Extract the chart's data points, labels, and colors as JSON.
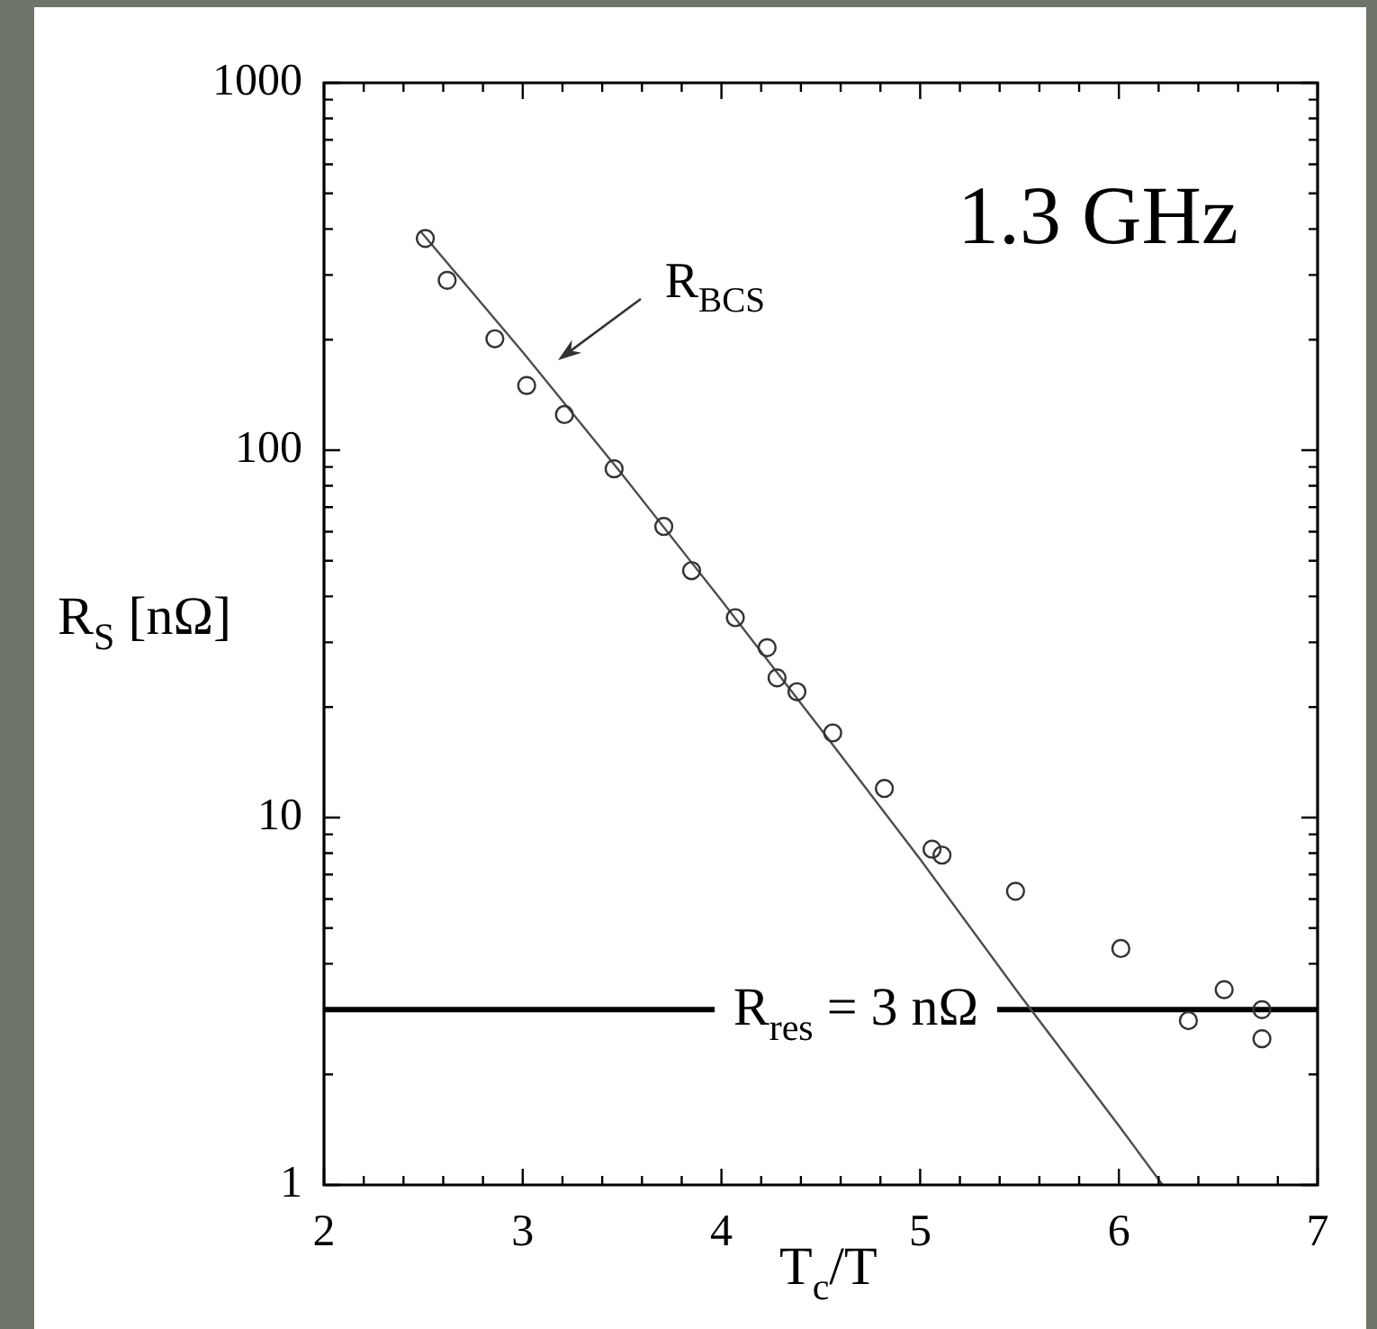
{
  "chart_data": {
    "type": "scatter",
    "xlabel": "T$_{c}$/T",
    "ylabel": "R$_{S}$ [nΩ]",
    "series": [
      {
        "color": "#333333",
        "x": [
          2.51,
          2.62,
          2.86,
          3.02,
          3.21,
          3.46,
          3.71,
          3.85,
          4.07,
          4.23,
          4.28,
          4.38,
          4.56,
          4.82,
          5.06,
          5.11,
          5.48,
          6.01,
          6.35,
          6.53,
          6.72,
          6.72
        ],
        "values": [
          377,
          290,
          201,
          150,
          125,
          89,
          62,
          47,
          35,
          29,
          24,
          22,
          17,
          12,
          8.2,
          7.9,
          6.3,
          4.4,
          2.8,
          3.4,
          3.0,
          2.5
        ]
      },
      {
        "type": "line",
        "color": "#4d4d4d",
        "marker": "none",
        "x": [
          2.49,
          3,
          3.5,
          4,
          4.5,
          5,
          5.5,
          6,
          6.22
        ],
        "values": [
          392,
          185,
          86,
          39,
          17.4,
          7.7,
          3.3,
          1.45,
          1
        ]
      }
    ],
    "xlim": [
      2,
      7
    ],
    "ylim": [
      1,
      1000
    ],
    "xticks": [
      2,
      {
        "value": 2.2,
        "label": null
      },
      {
        "value": 2.4,
        "label": null
      },
      {
        "value": 2.6,
        "label": null
      },
      {
        "value": 2.8,
        "label": null
      },
      3,
      {
        "value": 3.2,
        "label": null
      },
      {
        "value": 3.4,
        "label": null
      },
      {
        "value": 3.6,
        "label": null
      },
      {
        "value": 3.8,
        "label": null
      },
      4,
      {
        "value": 4.2,
        "label": null
      },
      {
        "value": 4.4,
        "label": null
      },
      {
        "value": 4.6,
        "label": null
      },
      {
        "value": 4.8,
        "label": null
      },
      5,
      {
        "value": 5.2,
        "label": null
      },
      {
        "value": 5.4,
        "label": null
      },
      {
        "value": 5.6,
        "label": null
      },
      {
        "value": 5.8,
        "label": null
      },
      6,
      {
        "value": 6.2,
        "label": null
      },
      {
        "value": 6.4,
        "label": null
      },
      {
        "value": 6.6,
        "label": null
      },
      {
        "value": 6.8,
        "label": null
      },
      7
    ],
    "yticks": [
      1,
      {
        "value": 2,
        "label": null
      },
      {
        "value": 3,
        "label": null
      },
      {
        "value": 4,
        "label": null
      },
      {
        "value": 5,
        "label": null
      },
      {
        "value": 6,
        "label": null
      },
      {
        "value": 7,
        "label": null
      },
      {
        "value": 8,
        "label": null
      },
      {
        "value": 9,
        "label": null
      },
      10,
      {
        "value": 20,
        "label": null
      },
      {
        "value": 30,
        "label": null
      },
      {
        "value": 40,
        "label": null
      },
      {
        "value": 50,
        "label": null
      },
      {
        "value": 60,
        "label": null
      },
      {
        "value": 70,
        "label": null
      },
      {
        "value": 80,
        "label": null
      },
      {
        "value": 90,
        "label": null
      },
      100,
      {
        "value": 200,
        "label": null
      },
      {
        "value": 300,
        "label": null
      },
      {
        "value": 400,
        "label": null
      },
      {
        "value": 500,
        "label": null
      },
      {
        "value": 600,
        "label": null
      },
      {
        "value": 700,
        "label": null
      },
      {
        "value": 800,
        "label": null
      },
      {
        "value": 900,
        "label": null
      },
      1000
    ],
    "log": "y",
    "marker": "circle",
    "ref_lines": [
      {
        "axis": "y",
        "value": 3,
        "label": "R$_{res}$ = 3 nΩ",
        "color": "#000000"
      }
    ],
    "annotations": [
      "1.3 GHz",
      {
        "text": "R$_{BCS}$",
        "x": 3.09,
        "y": 161
      }
    ]
  }
}
